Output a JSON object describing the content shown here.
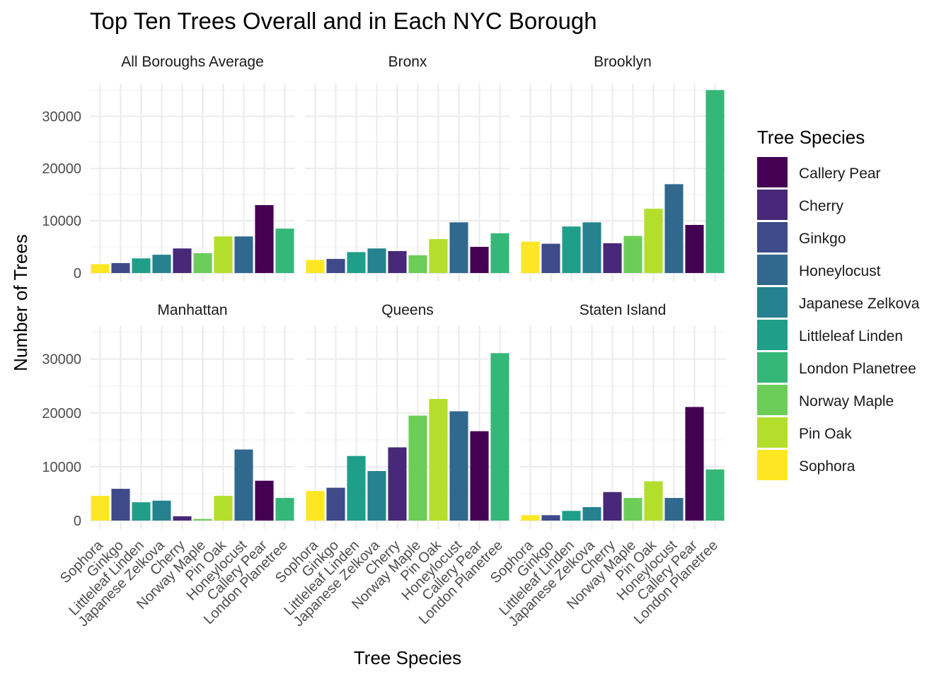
{
  "chart_data": {
    "type": "bar",
    "title": "Top Ten Trees Overall and in Each NYC Borough",
    "xlabel": "Tree Species",
    "ylabel": "Number of Trees",
    "ylim": [
      0,
      36000
    ],
    "yticks": [
      0,
      10000,
      20000,
      30000
    ],
    "grid": true,
    "legend_position": "right",
    "legend_title": "Tree Species",
    "categories": [
      "Sophora",
      "Ginkgo",
      "Littleleaf Linden",
      "Japanese Zelkova",
      "Cherry",
      "Norway Maple",
      "Pin Oak",
      "Honeylocust",
      "Callery Pear",
      "London Planetree"
    ],
    "legend": [
      "Callery Pear",
      "Cherry",
      "Ginkgo",
      "Honeylocust",
      "Japanese Zelkova",
      "Littleleaf Linden",
      "London Planetree",
      "Norway Maple",
      "Pin Oak",
      "Sophora"
    ],
    "colors": {
      "Callery Pear": "#440154",
      "Cherry": "#482878",
      "Ginkgo": "#3E4A89",
      "Honeylocust": "#31688E",
      "Japanese Zelkova": "#26828E",
      "Littleleaf Linden": "#1F9E89",
      "London Planetree": "#35B779",
      "Norway Maple": "#6DCD59",
      "Pin Oak": "#B4DE2C",
      "Sophora": "#FDE725"
    },
    "panels": [
      {
        "name": "All Boroughs Average",
        "values": [
          1700,
          1900,
          2800,
          3500,
          4700,
          3800,
          7000,
          7000,
          13000,
          8500
        ]
      },
      {
        "name": "Bronx",
        "values": [
          2500,
          2700,
          4000,
          4700,
          4200,
          3400,
          6500,
          9700,
          5000,
          7600
        ]
      },
      {
        "name": "Brooklyn",
        "values": [
          6000,
          5600,
          8900,
          9700,
          5700,
          7100,
          12300,
          17000,
          9200,
          35000
        ]
      },
      {
        "name": "Manhattan",
        "values": [
          4600,
          5900,
          3400,
          3700,
          800,
          300,
          4600,
          13200,
          7400,
          4200
        ]
      },
      {
        "name": "Queens",
        "values": [
          5500,
          6100,
          12000,
          9200,
          13600,
          19500,
          22600,
          20300,
          16600,
          31100
        ]
      },
      {
        "name": "Staten Island",
        "values": [
          1000,
          1000,
          1800,
          2500,
          5300,
          4200,
          7300,
          4200,
          21100,
          9500
        ]
      }
    ]
  }
}
